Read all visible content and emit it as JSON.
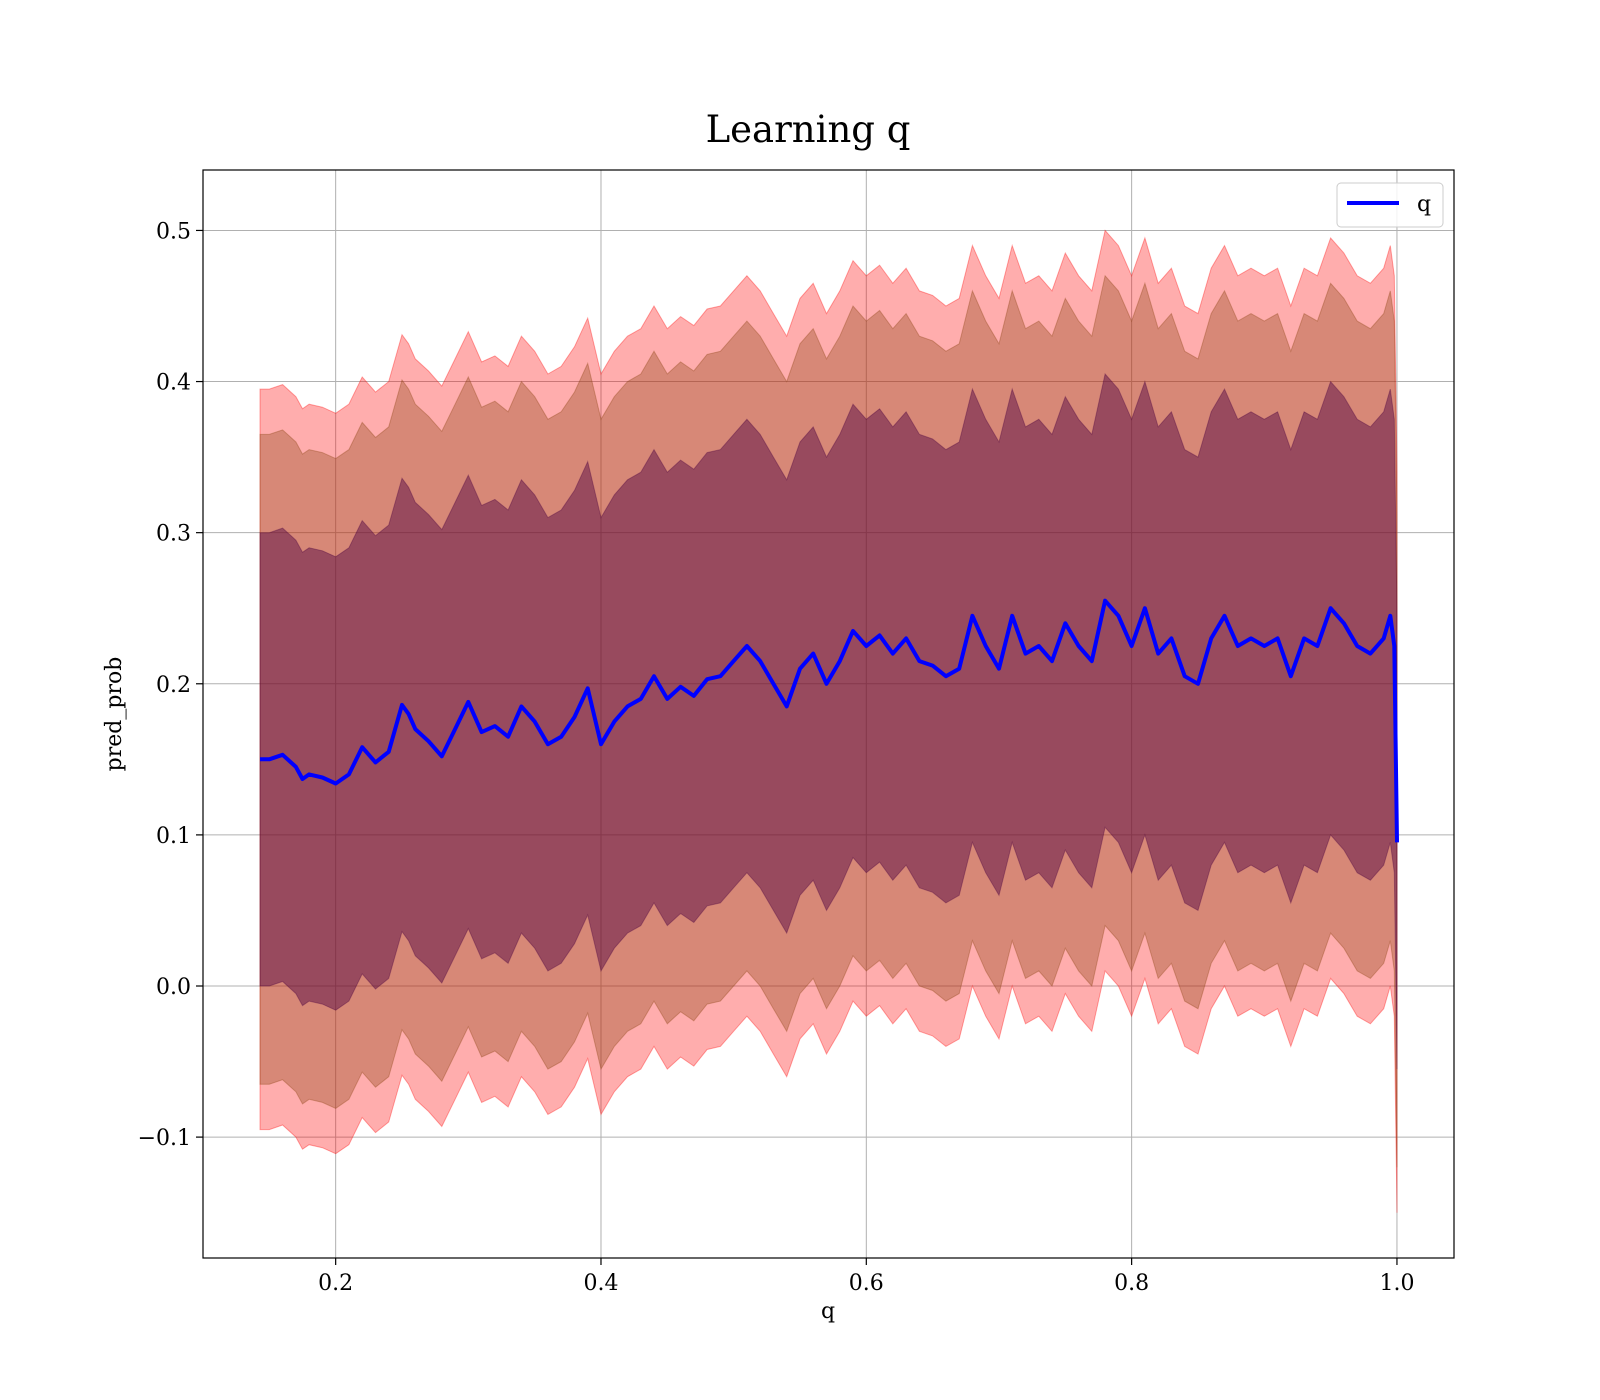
{
  "chart_data": {
    "type": "line",
    "title": "Learning q",
    "xlabel": "q",
    "ylabel": "pred_prob",
    "xlim": [
      0.1,
      1.043
    ],
    "ylim": [
      -0.18,
      0.54
    ],
    "xticks": [
      0.2,
      0.4,
      0.6,
      0.8,
      1.0
    ],
    "xtick_labels": [
      "0.2",
      "0.4",
      "0.6",
      "0.8",
      "1.0"
    ],
    "yticks": [
      -0.1,
      0.0,
      0.1,
      0.2,
      0.3,
      0.4,
      0.5
    ],
    "ytick_labels": [
      "−0.1",
      "0.0",
      "0.1",
      "0.2",
      "0.3",
      "0.4",
      "0.5"
    ],
    "grid": true,
    "legend_position": "top-right",
    "line_color": "#0000ff",
    "band_colors": {
      "outer": "#ff0000",
      "middle": "#8b4513",
      "inner": "#4b0040"
    },
    "band_half_widths": [
      0.245,
      0.215,
      0.15
    ],
    "series": [
      {
        "name": "q",
        "x": [
          0.143,
          0.15,
          0.16,
          0.17,
          0.175,
          0.18,
          0.19,
          0.2,
          0.21,
          0.22,
          0.23,
          0.24,
          0.25,
          0.255,
          0.26,
          0.27,
          0.28,
          0.29,
          0.3,
          0.31,
          0.32,
          0.33,
          0.34,
          0.35,
          0.36,
          0.37,
          0.38,
          0.39,
          0.4,
          0.41,
          0.42,
          0.43,
          0.44,
          0.45,
          0.46,
          0.47,
          0.48,
          0.49,
          0.5,
          0.51,
          0.52,
          0.53,
          0.54,
          0.55,
          0.56,
          0.57,
          0.58,
          0.59,
          0.6,
          0.61,
          0.62,
          0.63,
          0.64,
          0.65,
          0.66,
          0.67,
          0.68,
          0.69,
          0.7,
          0.71,
          0.72,
          0.73,
          0.74,
          0.75,
          0.76,
          0.77,
          0.78,
          0.79,
          0.8,
          0.81,
          0.82,
          0.83,
          0.84,
          0.85,
          0.86,
          0.87,
          0.88,
          0.89,
          0.9,
          0.91,
          0.92,
          0.93,
          0.94,
          0.95,
          0.96,
          0.97,
          0.98,
          0.99,
          0.995,
          0.998,
          1.0
        ],
        "y": [
          0.15,
          0.15,
          0.153,
          0.145,
          0.137,
          0.14,
          0.138,
          0.134,
          0.14,
          0.158,
          0.148,
          0.155,
          0.186,
          0.18,
          0.17,
          0.162,
          0.152,
          0.17,
          0.188,
          0.168,
          0.172,
          0.165,
          0.185,
          0.175,
          0.16,
          0.165,
          0.178,
          0.197,
          0.16,
          0.175,
          0.185,
          0.19,
          0.205,
          0.19,
          0.198,
          0.192,
          0.203,
          0.205,
          0.215,
          0.225,
          0.215,
          0.2,
          0.185,
          0.21,
          0.22,
          0.2,
          0.215,
          0.235,
          0.225,
          0.232,
          0.22,
          0.23,
          0.215,
          0.212,
          0.205,
          0.21,
          0.245,
          0.225,
          0.21,
          0.245,
          0.22,
          0.225,
          0.215,
          0.24,
          0.225,
          0.215,
          0.255,
          0.245,
          0.225,
          0.25,
          0.22,
          0.23,
          0.205,
          0.2,
          0.23,
          0.245,
          0.225,
          0.23,
          0.225,
          0.23,
          0.205,
          0.23,
          0.225,
          0.25,
          0.24,
          0.225,
          0.22,
          0.23,
          0.245,
          0.225,
          0.095
        ]
      }
    ]
  }
}
